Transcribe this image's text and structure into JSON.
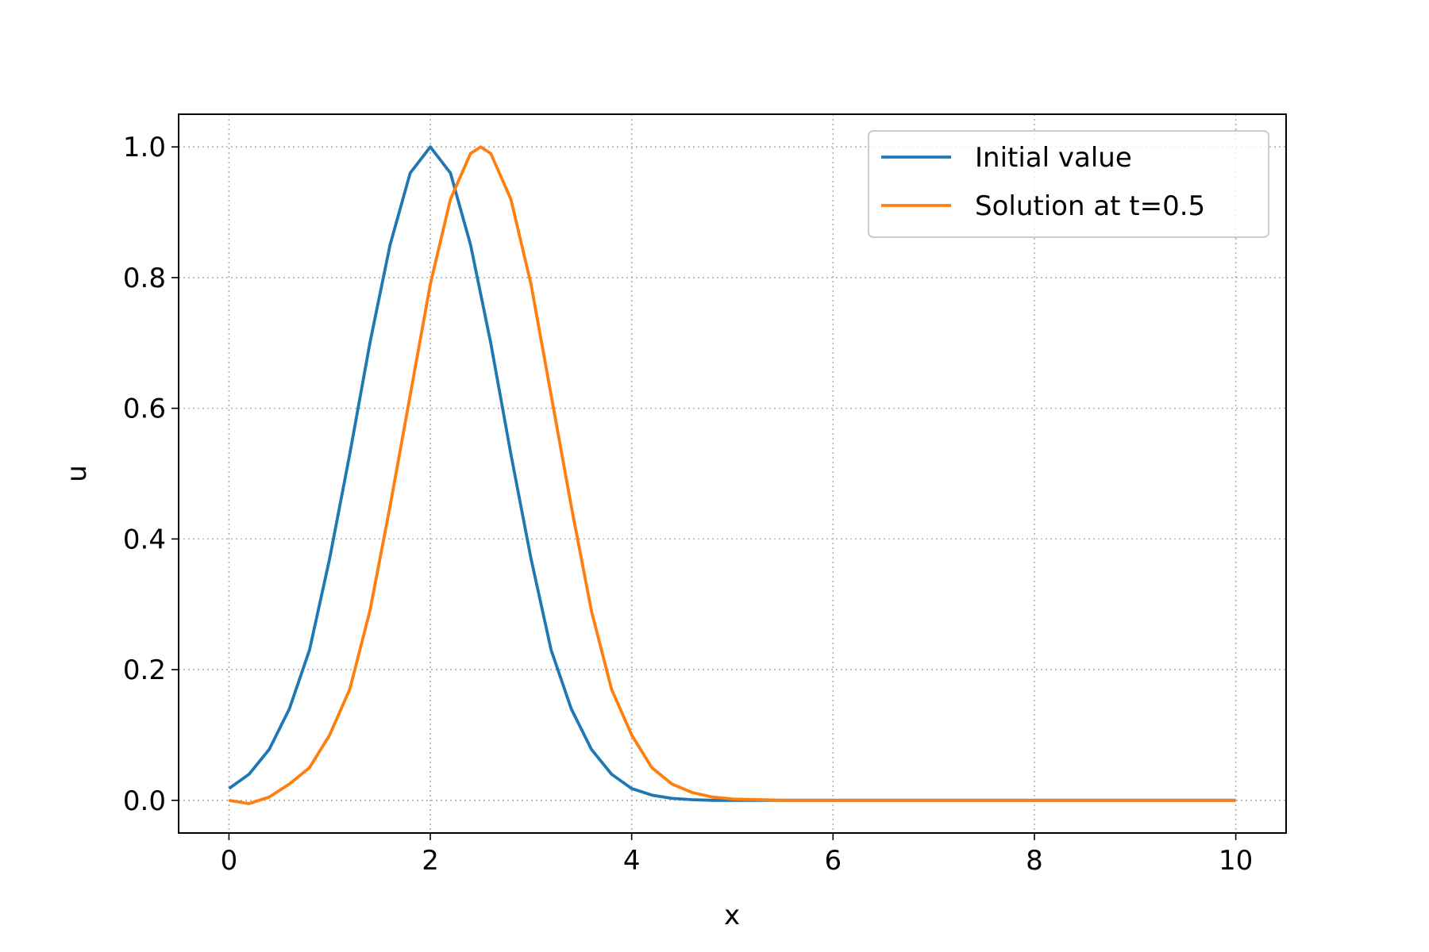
{
  "chart_data": {
    "type": "line",
    "xlabel": "x",
    "ylabel": "u",
    "xlim": [
      -0.5,
      10.5
    ],
    "ylim": [
      -0.05,
      1.05
    ],
    "xticks": [
      0,
      2,
      4,
      6,
      8,
      10
    ],
    "yticks": [
      0.0,
      0.2,
      0.4,
      0.6,
      0.8,
      1.0
    ],
    "xtick_labels": [
      "0",
      "2",
      "4",
      "6",
      "8",
      "10"
    ],
    "ytick_labels": [
      "0.0",
      "0.2",
      "0.4",
      "0.6",
      "0.8",
      "1.0"
    ],
    "grid": true,
    "legend_position": "top-right",
    "series": [
      {
        "name": "Initial value",
        "color": "#1f77b4",
        "x": [
          0,
          0.2,
          0.4,
          0.6,
          0.8,
          1.0,
          1.2,
          1.4,
          1.6,
          1.8,
          2.0,
          2.2,
          2.4,
          2.6,
          2.8,
          3.0,
          3.2,
          3.4,
          3.6,
          3.8,
          4.0,
          4.2,
          4.4,
          4.6,
          4.8,
          5.0,
          6.0,
          7.0,
          8.0,
          9.0,
          10.0
        ],
        "y": [
          0.018,
          0.04,
          0.078,
          0.14,
          0.23,
          0.37,
          0.53,
          0.7,
          0.85,
          0.96,
          1.0,
          0.96,
          0.85,
          0.7,
          0.53,
          0.37,
          0.23,
          0.14,
          0.078,
          0.04,
          0.018,
          0.008,
          0.003,
          0.001,
          0.0,
          0.0,
          0.0,
          0.0,
          0.0,
          0.0,
          0.0
        ]
      },
      {
        "name": "Solution at t=0.5",
        "color": "#ff7f0e",
        "x": [
          0,
          0.2,
          0.4,
          0.6,
          0.8,
          1.0,
          1.2,
          1.4,
          1.6,
          1.8,
          2.0,
          2.2,
          2.4,
          2.5,
          2.6,
          2.8,
          3.0,
          3.2,
          3.4,
          3.6,
          3.8,
          4.0,
          4.2,
          4.4,
          4.6,
          4.8,
          5.0,
          5.5,
          6.0,
          7.0,
          8.0,
          9.0,
          10.0
        ],
        "y": [
          0.0,
          -0.005,
          0.005,
          0.025,
          0.05,
          0.1,
          0.17,
          0.29,
          0.45,
          0.62,
          0.79,
          0.92,
          0.99,
          1.0,
          0.99,
          0.92,
          0.79,
          0.62,
          0.45,
          0.29,
          0.17,
          0.1,
          0.05,
          0.025,
          0.012,
          0.005,
          0.002,
          0.0,
          0.0,
          0.0,
          0.0,
          0.0,
          0.0
        ]
      }
    ]
  }
}
